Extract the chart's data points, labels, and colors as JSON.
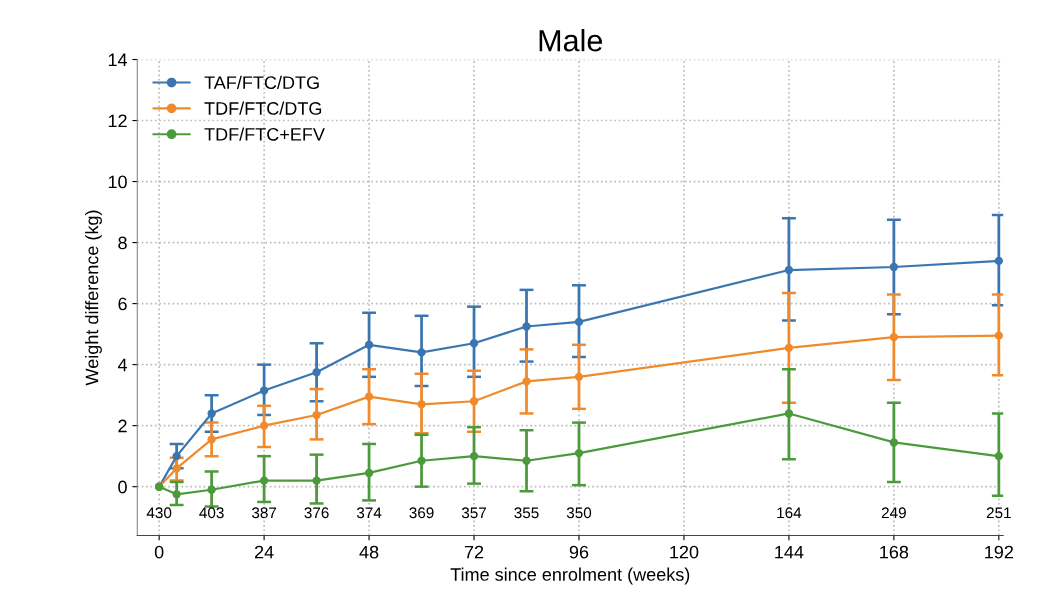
{
  "chart_data": {
    "type": "line",
    "title": "Male",
    "xlabel": "Time since enrolment (weeks)",
    "ylabel": "Weight difference (kg)",
    "x": [
      0,
      4,
      12,
      24,
      36,
      48,
      60,
      72,
      84,
      96,
      144,
      168,
      192
    ],
    "series": [
      {
        "name": "TAF/FTC/DTG",
        "color": "#3b76b1",
        "values": [
          0,
          1.0,
          2.4,
          3.15,
          3.75,
          4.65,
          4.4,
          4.7,
          5.25,
          5.4,
          7.1,
          7.2,
          7.4
        ],
        "errors": [
          null,
          [
            0.6,
            1.4
          ],
          [
            1.8,
            3.0
          ],
          [
            2.35,
            4.0
          ],
          [
            2.8,
            4.7
          ],
          [
            3.6,
            5.7
          ],
          [
            3.3,
            5.6
          ],
          [
            3.6,
            5.9
          ],
          [
            4.1,
            6.45
          ],
          [
            4.25,
            6.6
          ],
          [
            5.45,
            8.8
          ],
          [
            5.65,
            8.75
          ],
          [
            5.95,
            8.9
          ]
        ]
      },
      {
        "name": "TDF/FTC/DTG",
        "color": "#f08a2c",
        "values": [
          0,
          0.6,
          1.55,
          2.0,
          2.35,
          2.95,
          2.7,
          2.8,
          3.45,
          3.6,
          4.55,
          4.9,
          4.95
        ],
        "errors": [
          null,
          [
            0.2,
            0.95
          ],
          [
            1.0,
            2.1
          ],
          [
            1.3,
            2.65
          ],
          [
            1.55,
            3.2
          ],
          [
            2.05,
            3.85
          ],
          [
            1.75,
            3.7
          ],
          [
            1.8,
            3.8
          ],
          [
            2.4,
            4.5
          ],
          [
            2.55,
            4.65
          ],
          [
            2.75,
            6.35
          ],
          [
            3.5,
            6.3
          ],
          [
            3.65,
            6.3
          ]
        ]
      },
      {
        "name": "TDF/FTC+EFV",
        "color": "#4b9a3c",
        "values": [
          0,
          -0.25,
          -0.1,
          0.2,
          0.2,
          0.45,
          0.85,
          1.0,
          0.85,
          1.1,
          2.4,
          1.45,
          1.0
        ],
        "errors": [
          null,
          [
            -0.6,
            0.15
          ],
          [
            -0.65,
            0.5
          ],
          [
            -0.5,
            1.0
          ],
          [
            -0.55,
            1.05
          ],
          [
            -0.45,
            1.4
          ],
          [
            0.0,
            1.7
          ],
          [
            0.1,
            1.95
          ],
          [
            -0.15,
            1.85
          ],
          [
            0.05,
            2.1
          ],
          [
            0.9,
            3.85
          ],
          [
            0.15,
            2.75
          ],
          [
            -0.3,
            2.4
          ]
        ]
      }
    ],
    "xlim": [
      -5,
      193
    ],
    "xticks": [
      0,
      24,
      48,
      72,
      96,
      120,
      144,
      168,
      192
    ],
    "ylim": [
      -1.6,
      14
    ],
    "yticks": [
      0,
      2,
      4,
      6,
      8,
      10,
      12,
      14
    ],
    "annotations": [
      "430",
      "403",
      "387",
      "376",
      "374",
      "369",
      "357",
      "355",
      "350",
      "164",
      "249",
      "251"
    ],
    "grid": true,
    "legend": "top left",
    "marker": "circle",
    "line_style": "solid"
  }
}
